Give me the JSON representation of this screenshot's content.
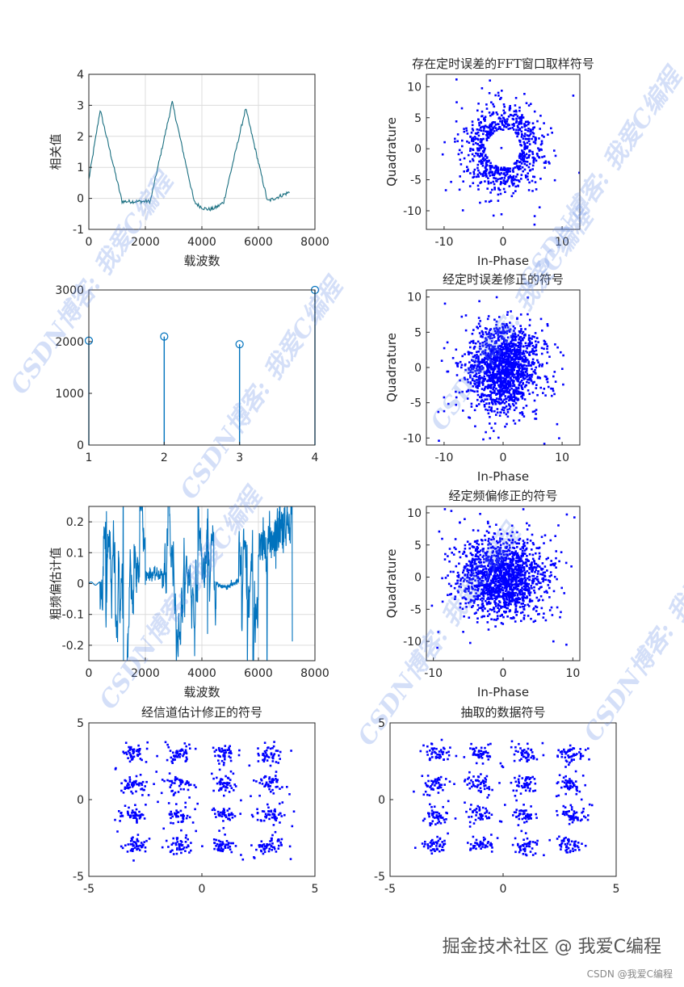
{
  "colors": {
    "teal": "#0072BD",
    "dark_teal": "#1a6f80",
    "blue": "#0000ff",
    "axis": "#262626",
    "grid": "#dcdcdc"
  },
  "footer": {
    "main": "掘金技术社区 @ 我爱C编程",
    "sub": "CSDN @我爱C编程"
  },
  "watermark": {
    "text": "CSDN博客: 我爱C编程"
  },
  "chart_data": [
    {
      "id": "corr",
      "type": "line",
      "title": "",
      "xlabel": "载波数",
      "ylabel": "相关值",
      "xlim": [
        0,
        8000
      ],
      "ylim": [
        -1,
        4
      ],
      "xticks": [
        0,
        2000,
        4000,
        6000,
        8000
      ],
      "yticks": [
        -1,
        0,
        1,
        2,
        3,
        4
      ],
      "grid": true,
      "peaks": [
        {
          "x": 400,
          "y": 2.85
        },
        {
          "x": 2950,
          "y": 3.1
        },
        {
          "x": 5550,
          "y": 2.9
        }
      ],
      "x_end": 7100
    },
    {
      "id": "stem",
      "type": "stem",
      "title": "",
      "xlabel": "",
      "ylabel": "",
      "xlim": [
        1,
        4
      ],
      "ylim": [
        0,
        3000
      ],
      "xticks": [
        1,
        2,
        3,
        4
      ],
      "yticks": [
        0,
        1000,
        2000,
        3000
      ],
      "x": [
        1,
        2,
        3,
        4
      ],
      "values": [
        2020,
        2100,
        1950,
        3000
      ]
    },
    {
      "id": "cfo",
      "type": "line",
      "title": "",
      "xlabel": "载波数",
      "ylabel": "粗频偏估计值",
      "xlim": [
        0,
        8000
      ],
      "ylim": [
        -0.25,
        0.25
      ],
      "xticks": [
        0,
        2000,
        4000,
        6000,
        8000
      ],
      "yticks": [
        -0.2,
        -0.1,
        0,
        0.1,
        0.2
      ],
      "grid": true
    },
    {
      "id": "sc1",
      "type": "scatter",
      "title": "存在定时误差的FFT窗口取样符号",
      "xlabel": "In-Phase",
      "ylabel": "Quadrature",
      "xlim": [
        -13,
        13
      ],
      "ylim": [
        -13,
        12
      ],
      "xticks": [
        -10,
        0,
        10
      ],
      "yticks": [
        -10,
        -5,
        0,
        5,
        10
      ],
      "pattern": "ring"
    },
    {
      "id": "sc2",
      "type": "scatter",
      "title": "经定时误差修正的符号",
      "xlabel": "In-Phase",
      "ylabel": "Quadrature",
      "xlim": [
        -13,
        13
      ],
      "ylim": [
        -11,
        11
      ],
      "xticks": [
        -10,
        0,
        10
      ],
      "yticks": [
        -10,
        -5,
        0,
        5,
        10
      ],
      "pattern": "cloud"
    },
    {
      "id": "sc3",
      "type": "scatter",
      "title": "经定频偏修正的符号",
      "xlabel": "In-Phase",
      "ylabel": "Quadrature",
      "xlim": [
        -11,
        11
      ],
      "ylim": [
        -13,
        11
      ],
      "xticks": [
        -10,
        0,
        10
      ],
      "yticks": [
        -10,
        -5,
        0,
        5,
        10
      ],
      "pattern": "cloud"
    },
    {
      "id": "sc4",
      "type": "scatter",
      "title": "经信道估计修正的符号",
      "xlabel": "",
      "ylabel": "",
      "xlim": [
        -5,
        5
      ],
      "ylim": [
        -5,
        5
      ],
      "xticks": [
        -5,
        0,
        5
      ],
      "yticks": [
        -5,
        0,
        5
      ],
      "pattern": "qam16"
    },
    {
      "id": "sc5",
      "type": "scatter",
      "title": "抽取的数据符号",
      "xlabel": "",
      "ylabel": "",
      "xlim": [
        -5,
        5
      ],
      "ylim": [
        -5,
        5
      ],
      "xticks": [
        -5,
        0,
        5
      ],
      "yticks": [
        -5,
        0,
        5
      ],
      "pattern": "qam16"
    }
  ]
}
